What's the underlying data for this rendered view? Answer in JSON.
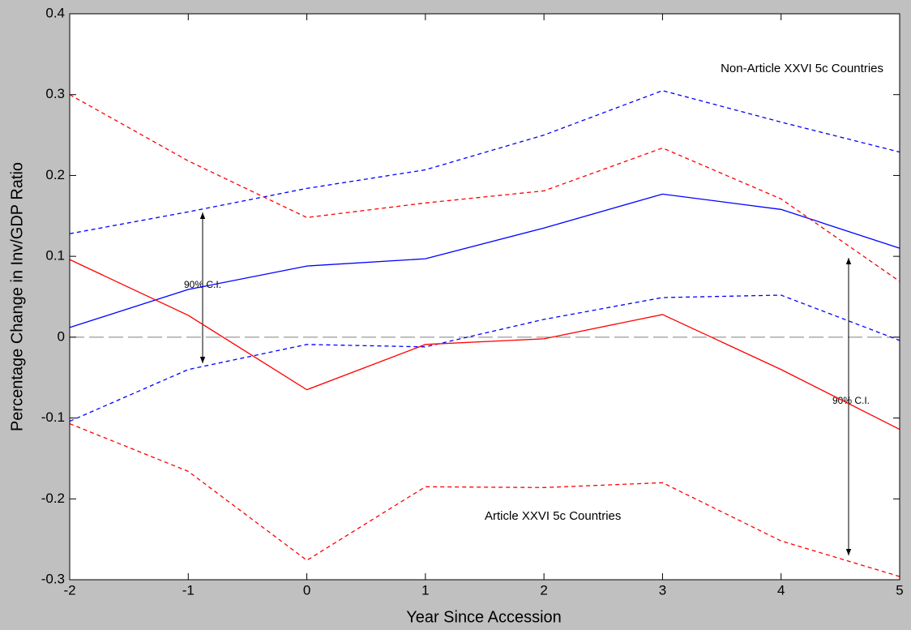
{
  "chart_data": {
    "type": "line",
    "x_label": "Year Since Accession",
    "y_label": "Percentage Change in Inv/GDP Ratio",
    "x": [
      -2,
      -1,
      0,
      1,
      2,
      3,
      4,
      5
    ],
    "xlim": [
      -2,
      5
    ],
    "xticks": [
      -2,
      -1,
      0,
      1,
      2,
      3,
      4,
      5
    ],
    "ylim": [
      -0.3,
      0.4
    ],
    "yticks": [
      -0.3,
      -0.2,
      -0.1,
      0,
      0.1,
      0.2,
      0.3,
      0.4
    ],
    "reference_line": 0,
    "series": [
      {
        "color": "#0000ff",
        "style": "solid",
        "values": [
          0.012,
          0.059,
          0.088,
          0.097,
          0.135,
          0.177,
          0.158,
          0.11
        ]
      },
      {
        "color": "#0000ff",
        "style": "dashed",
        "values": [
          0.128,
          0.155,
          0.184,
          0.207,
          0.25,
          0.305,
          0.266,
          0.229
        ]
      },
      {
        "color": "#0000ff",
        "style": "dashed",
        "values": [
          -0.104,
          -0.04,
          -0.009,
          -0.012,
          0.022,
          0.049,
          0.052,
          -0.004
        ]
      },
      {
        "color": "#ff0000",
        "style": "solid",
        "values": [
          0.096,
          0.027,
          -0.065,
          -0.009,
          -0.002,
          0.028,
          -0.04,
          -0.114
        ]
      },
      {
        "color": "#ff0000",
        "style": "dashed",
        "values": [
          0.3,
          0.218,
          0.148,
          0.166,
          0.181,
          0.234,
          0.171,
          0.069
        ]
      },
      {
        "color": "#ff0000",
        "style": "dashed",
        "values": [
          -0.107,
          -0.166,
          -0.276,
          -0.185,
          -0.186,
          -0.18,
          -0.252,
          -0.296
        ]
      }
    ],
    "annotations": [
      "Non-Article XXVI 5c Countries",
      "Article XXVI 5c Countries",
      "90% C.I.",
      "90% C.I."
    ]
  }
}
